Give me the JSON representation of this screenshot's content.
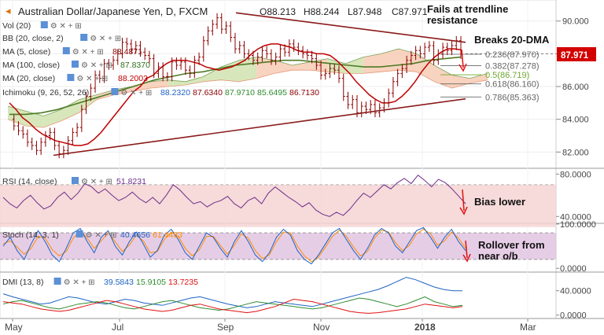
{
  "header": {
    "symbol_title": "Australian Dollar/Japanese Yen, D, FXCM",
    "ohlc": [
      {
        "k": "O",
        "v": "88.213"
      },
      {
        "k": "H",
        "v": "88.244"
      },
      {
        "k": "L",
        "v": "87.948"
      },
      {
        "k": "C",
        "v": "87.971"
      }
    ]
  },
  "colors": {
    "background": "#ffffff",
    "axis_text": "#444444",
    "grid": "#eeeeee",
    "price": "#8b0000",
    "ma_fast": "#c00000",
    "ma_slow": "#4e7b26",
    "ma_mid": "#d35400",
    "kumo_bull": "#c9dfa4",
    "kumo_bear": "#f6c4a9",
    "trendline": "#8b1a1a",
    "fib": "#666666",
    "fib_50": "#6fa82f",
    "arrow": "#e01010",
    "last_price_bg": "#d40000",
    "rsi_line": "#6b2f8a",
    "rsi_band": "#f6d3d3",
    "stoch_k": "#1e63c4",
    "stoch_d": "#ff8c00",
    "stoch_band": "#e0c0e0",
    "dmi_plus": "#1e63c4",
    "dmi_minus": "#2f8b2f",
    "dmi_adx": "#e01010"
  },
  "price_panel": {
    "indicators": [
      {
        "name": "Vol (20)",
        "values": []
      },
      {
        "name": "BB (20, close, 2)",
        "values": []
      },
      {
        "name": "MA (5, close)",
        "values": [
          {
            "text": "88.4871",
            "color": "#8b0000"
          }
        ]
      },
      {
        "name": "MA (100, close)",
        "values": [
          {
            "text": "87.8370",
            "color": "#2f6d1a"
          }
        ]
      },
      {
        "name": "MA (20, close)",
        "values": [
          {
            "text": "88.2003",
            "color": "#c00000"
          }
        ]
      },
      {
        "name": "Ichimoku (9, 26, 52, 26)",
        "values": [
          {
            "text": "88.2320",
            "color": "#1e63c4"
          },
          {
            "text": "87.6340",
            "color": "#8b0000"
          },
          {
            "text": "87.9710",
            "color": "#2f8b2f"
          },
          {
            "text": "85.6495",
            "color": "#2f8b2f"
          },
          {
            "text": "86.7130",
            "color": "#8b0000"
          }
        ]
      }
    ],
    "annotations": {
      "resistance": "Fails at trendline\nresistance",
      "dma": "Breaks 20-DMA"
    },
    "last_price": "87.971",
    "fib_levels": [
      {
        "label": "0.236(87.970)",
        "value": 87.97
      },
      {
        "label": "0.382(87.278)",
        "value": 87.278
      },
      {
        "label": "0.5(86.719)",
        "value": 86.719
      },
      {
        "label": "0.618(86.160)",
        "value": 86.16
      },
      {
        "label": "0.786(85.363)",
        "value": 85.363
      }
    ]
  },
  "rsi_panel": {
    "name": "RSI (14, close)",
    "value": "51.8231",
    "annotation": "Bias lower"
  },
  "stoch_panel": {
    "name": "Stoch (14, 3, 1)",
    "values": [
      {
        "text": "40.4656",
        "color": "#1e63c4"
      },
      {
        "text": "61.4483",
        "color": "#ff8c00"
      }
    ],
    "annotation": "Rollover from\nnear o/b"
  },
  "dmi_panel": {
    "name": "DMI (13, 8)",
    "values": [
      {
        "text": "39.5843",
        "color": "#1e63c4"
      },
      {
        "text": "15.9105",
        "color": "#2f8b2f"
      },
      {
        "text": "13.7235",
        "color": "#e01010"
      }
    ]
  },
  "time_axis": {
    "labels": [
      {
        "text": "May",
        "bold": false
      },
      {
        "text": "Jul",
        "bold": false
      },
      {
        "text": "Sep",
        "bold": false
      },
      {
        "text": "Nov",
        "bold": false
      },
      {
        "text": "2018",
        "bold": true
      },
      {
        "text": "Mar",
        "bold": false
      }
    ]
  },
  "chart_data": [
    {
      "type": "line",
      "title": "Australian Dollar/Japanese Yen, D, FXCM",
      "x_range": [
        "2017-05-01",
        "2018-03-05"
      ],
      "ylim": [
        81.2,
        90.9
      ],
      "yticks": [
        "90.000",
        "88.000",
        "86.000",
        "84.000",
        "82.000"
      ],
      "ytick_values": [
        90,
        88,
        86,
        84,
        82
      ],
      "series": [
        {
          "name": "AUD/JPY",
          "values": [
            84.0,
            83.6,
            83.3,
            83.1,
            82.6,
            82.4,
            82.1,
            82.6,
            83.0,
            83.2,
            82.4,
            81.9,
            82.1,
            82.7,
            83.2,
            83.5,
            84.6,
            85.4,
            85.9,
            86.7,
            86.5,
            87.4,
            87.3,
            87.6,
            88.0,
            88.7,
            88.6,
            88.3,
            88.5,
            88.1,
            87.9,
            87.7,
            86.8,
            87.2,
            86.6,
            86.6,
            87.5,
            87.3,
            87.5,
            87.0,
            86.8,
            87.6,
            87.8,
            88.8,
            89.4,
            89.8,
            90.2,
            89.5,
            89.7,
            89.0,
            88.3,
            88.5,
            88.0,
            87.9,
            87.6,
            87.8,
            88.2,
            88.0,
            87.6,
            87.8,
            88.3,
            88.1,
            88.6,
            88.4,
            88.2,
            88.0,
            87.9,
            87.7,
            87.3,
            86.7,
            86.8,
            87.1,
            87.0,
            86.5,
            85.4,
            84.9,
            85.2,
            84.4,
            84.8,
            84.6,
            84.9,
            84.4,
            84.7,
            85.0,
            85.6,
            86.3,
            86.8,
            87.1,
            87.6,
            87.9,
            88.2,
            88.0,
            88.4,
            88.5,
            87.6,
            88.0,
            88.4,
            88.2,
            88.5,
            88.8,
            87.97
          ]
        },
        {
          "name": "MA (20, close)",
          "values": [
            85.0,
            84.6,
            84.1,
            83.8,
            83.4,
            83.1,
            82.9,
            82.7,
            82.6,
            82.5,
            82.4,
            82.4,
            82.5,
            82.8,
            83.2,
            83.7,
            84.2,
            84.7,
            85.2,
            85.7,
            86.0,
            86.5,
            86.7,
            87.1,
            87.4,
            87.6,
            87.6,
            87.6,
            87.5,
            87.4,
            87.2,
            87.1,
            87.0,
            87.1,
            87.2,
            87.4,
            87.6,
            88.0,
            88.3,
            88.5,
            88.6,
            88.6,
            88.5,
            88.4,
            88.2,
            88.1,
            88.1,
            88.0,
            88.0,
            87.9,
            87.6,
            87.2,
            86.8,
            86.3,
            85.9,
            85.5,
            85.2,
            85.0,
            85.0,
            85.1,
            85.4,
            85.8,
            86.3,
            86.9,
            87.4,
            87.8,
            88.1,
            88.3,
            88.3,
            88.25
          ]
        },
        {
          "name": "MA (100, close)",
          "values": [
            84.3,
            84.3,
            84.4,
            84.6,
            84.9,
            85.2,
            85.5,
            85.8,
            86.1,
            86.4,
            86.6,
            86.8,
            86.9,
            87.1,
            87.3,
            87.4,
            87.5,
            87.6,
            87.6,
            87.5,
            87.4,
            87.3,
            87.2,
            87.2,
            87.3,
            87.4,
            87.6,
            87.7,
            87.8
          ]
        }
      ],
      "ichimoku_cloud": {
        "upper": [
          84.8,
          84.5,
          84.2,
          84.6,
          85.2,
          85.5,
          85.8,
          86.0,
          86.3,
          86.4,
          86.3,
          86.6,
          87.2,
          87.6,
          87.8,
          87.6,
          87.3,
          87.5,
          87.7,
          87.4,
          87.8,
          88.0,
          88.3,
          88.0,
          87.3,
          86.7,
          86.5,
          86.8
        ],
        "lower": [
          84.0,
          83.6,
          83.5,
          83.9,
          84.4,
          85.2,
          85.5,
          85.7,
          85.9,
          86.0,
          86.1,
          86.3,
          86.4,
          86.3,
          86.5,
          86.8,
          87.0,
          87.0,
          86.9,
          86.8,
          86.8,
          86.9,
          87.0,
          86.9,
          86.3,
          85.9,
          86.2,
          86.4
        ]
      }
    },
    {
      "type": "line",
      "title": "RSI (14, close)",
      "ylim": [
        35,
        84
      ],
      "yticks": [
        "80.0000",
        "40.0000"
      ],
      "ytick_values": [
        80,
        40
      ],
      "series": [
        {
          "name": "RSI",
          "values": [
            58,
            52,
            48,
            55,
            60,
            53,
            47,
            50,
            58,
            63,
            56,
            62,
            71,
            68,
            62,
            66,
            60,
            55,
            58,
            63,
            57,
            53,
            58,
            52,
            60,
            70,
            65,
            58,
            52,
            54,
            49,
            53,
            55,
            59,
            52,
            48,
            55,
            58,
            52,
            62,
            68,
            63,
            58,
            54,
            49,
            53,
            46,
            42,
            40,
            44,
            41,
            47,
            55,
            62,
            58,
            64,
            70,
            66,
            72,
            76,
            71,
            79,
            74,
            68,
            75,
            72,
            66,
            59,
            52
          ]
        }
      ]
    },
    {
      "type": "line",
      "title": "Stoch (14, 3, 1)",
      "ylim": [
        -5,
        98
      ],
      "yticks": [
        "100.0000",
        "0.0000"
      ],
      "ytick_values": [
        100,
        0
      ],
      "series": [
        {
          "name": "%K",
          "values": [
            50,
            70,
            40,
            20,
            55,
            85,
            60,
            30,
            15,
            45,
            80,
            90,
            60,
            35,
            70,
            85,
            50,
            30,
            60,
            82,
            55,
            25,
            40,
            75,
            88,
            65,
            35,
            20,
            50,
            80,
            70,
            45,
            25,
            60,
            85,
            60,
            30,
            15,
            35,
            70,
            88,
            75,
            40,
            20,
            10,
            30,
            55,
            80,
            90,
            65,
            40,
            20,
            45,
            75,
            90,
            80,
            50,
            35,
            60,
            85,
            92,
            70,
            45,
            70,
            88,
            60,
            40
          ]
        },
        {
          "name": "%D",
          "values": [
            55,
            62,
            48,
            32,
            45,
            72,
            68,
            42,
            28,
            38,
            68,
            85,
            68,
            45,
            62,
            80,
            60,
            38,
            52,
            75,
            62,
            35,
            38,
            65,
            82,
            72,
            45,
            28,
            42,
            72,
            72,
            52,
            32,
            52,
            78,
            68,
            40,
            22,
            30,
            60,
            82,
            80,
            50,
            28,
            15,
            25,
            48,
            72,
            86,
            72,
            48,
            28,
            38,
            68,
            86,
            82,
            58,
            40,
            52,
            78,
            88,
            78,
            52,
            62,
            82,
            68,
            45
          ]
        }
      ]
    },
    {
      "type": "line",
      "title": "DMI (13, 8)",
      "ylim": [
        -3,
        68
      ],
      "yticks": [
        "40.0000",
        "0.0000"
      ],
      "ytick_values": [
        40,
        0
      ],
      "series": [
        {
          "name": "+DI",
          "values": [
            35,
            30,
            26,
            22,
            18,
            20,
            25,
            30,
            28,
            24,
            20,
            18,
            22,
            26,
            24,
            20,
            18,
            16,
            20,
            24,
            28,
            30,
            26,
            22,
            18,
            15,
            12,
            14,
            18,
            22,
            20,
            18,
            16,
            14,
            18,
            22,
            26,
            30,
            34,
            38,
            42,
            48,
            55,
            62,
            58,
            52,
            46,
            42,
            40,
            40
          ]
        },
        {
          "name": "-DI",
          "values": [
            18,
            22,
            24,
            20,
            16,
            12,
            10,
            14,
            18,
            20,
            22,
            20,
            16,
            12,
            10,
            14,
            18,
            22,
            24,
            20,
            16,
            12,
            10,
            8,
            10,
            14,
            18,
            22,
            20,
            18,
            16,
            14,
            12,
            10,
            12,
            16,
            20,
            24,
            28,
            26,
            22,
            18,
            14,
            18,
            24,
            30,
            22,
            18,
            14,
            16
          ]
        },
        {
          "name": "ADX",
          "values": [
            22,
            20,
            18,
            14,
            10,
            8,
            6,
            8,
            12,
            16,
            20,
            24,
            22,
            18,
            14,
            10,
            8,
            6,
            8,
            12,
            16,
            18,
            14,
            10,
            8,
            6,
            4,
            6,
            10,
            14,
            20,
            26,
            24,
            22,
            18,
            14,
            10,
            6,
            4,
            3,
            4,
            6,
            8,
            10,
            14,
            18,
            16,
            14,
            12,
            14
          ]
        }
      ]
    }
  ]
}
